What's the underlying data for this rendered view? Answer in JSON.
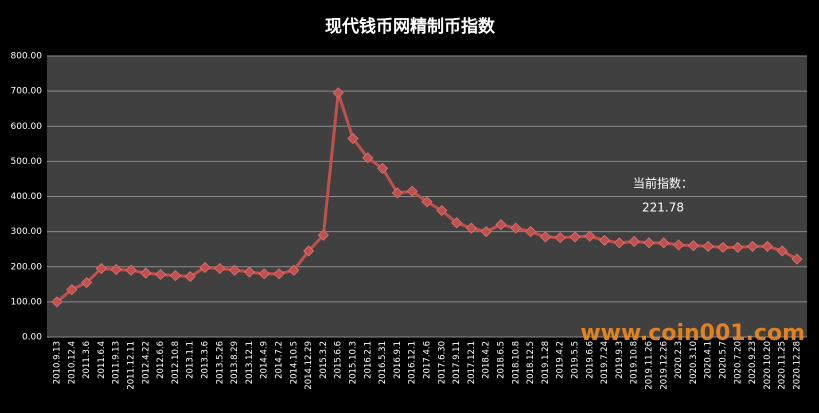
{
  "chart_data": {
    "type": "line",
    "title": "现代钱币网精制币指数",
    "categories": [
      "2010.9.13",
      "2010.12.4",
      "2011.3.6",
      "2011.6.4",
      "2011.9.13",
      "2011.12.11",
      "2012.4.22",
      "2012.6.6",
      "2012.10.8",
      "2013.1.1",
      "2013.3.6",
      "2013.5.26",
      "2013.8.29",
      "2013.12.1",
      "2014.4.9",
      "2014.7.2",
      "2014.10.5",
      "2014.12.29",
      "2015.3.2",
      "2015.6.6",
      "2015.10.3",
      "2016.2.1",
      "2016.5.31",
      "2016.9.1",
      "2016.12.1",
      "2017.4.6",
      "2017.6.30",
      "2017.9.11",
      "2017.12.1",
      "2018.4.2",
      "2018.6.5",
      "2018.10.8",
      "2018.12.5",
      "2019.1.28",
      "2019.4.2",
      "2019.5.5",
      "2019.6.6",
      "2019.7.24",
      "2019.9.3",
      "2019.10.8",
      "2019.11.26",
      "2019.12.26",
      "2020.2.3",
      "2020.3.10",
      "2020.4.1",
      "2020.5.7",
      "2020.7.20",
      "2020.9.23",
      "2020.10.20",
      "2020.11.25",
      "2020.12.28"
    ],
    "values": [
      100,
      135,
      155,
      195,
      192,
      190,
      182,
      178,
      175,
      172,
      198,
      195,
      190,
      185,
      180,
      180,
      190,
      245,
      290,
      695,
      565,
      510,
      480,
      410,
      415,
      385,
      360,
      325,
      310,
      300,
      320,
      310,
      300,
      285,
      283,
      285,
      287,
      275,
      268,
      272,
      268,
      268,
      262,
      260,
      258,
      255,
      255,
      258,
      258,
      245,
      221.78
    ],
    "color": "#c0504d",
    "ylim": [
      0,
      800
    ],
    "yticks": [
      {
        "value": 0,
        "label": "0.00"
      },
      {
        "value": 100,
        "label": "100.00"
      },
      {
        "value": 200,
        "label": "200.00"
      },
      {
        "value": 300,
        "label": "300.00"
      },
      {
        "value": 400,
        "label": "400.00"
      },
      {
        "value": 500,
        "label": "500.00"
      },
      {
        "value": 600,
        "label": "600.00"
      },
      {
        "value": 700,
        "label": "700.00"
      },
      {
        "value": 800,
        "label": "800.00"
      }
    ],
    "grid": true,
    "annotation": "当前指数：",
    "watermark": "www.coin001.com"
  }
}
